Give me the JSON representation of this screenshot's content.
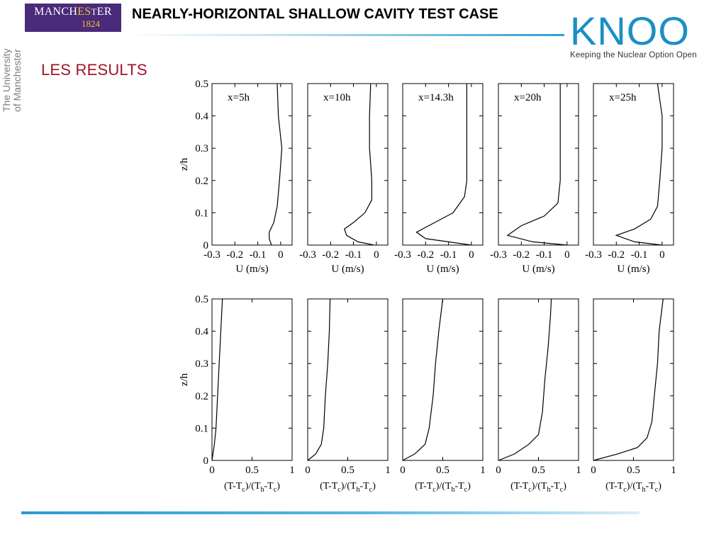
{
  "header": {
    "title": "NEARLY-HORIZONTAL SHALLOW CAVITY TEST CASE",
    "manchester_logo": {
      "line1_a": "MANCH",
      "line1_b": "ES",
      "line1_c": "T",
      "line1_d": "ER",
      "line2": "1824"
    },
    "university_vertical_line1": "The University",
    "university_vertical_line2": "of Manchester",
    "knoo_logo": "KNOO",
    "knoo_tagline": "Keeping the Nuclear Option Open"
  },
  "section_title": "LES RESULTS",
  "colors": {
    "title_rule_accent": "#2e9fd5",
    "section_title": "#a0142a",
    "knoo_blue": "#1a8fc6",
    "manchester_purple": "#4a2a7a"
  },
  "chart_data": [
    {
      "type": "line",
      "row": "velocity",
      "panels": [
        {
          "label": "x=5h",
          "points": [
            [
              -0.04,
              0.0
            ],
            [
              -0.05,
              0.02
            ],
            [
              -0.05,
              0.04
            ],
            [
              -0.03,
              0.07
            ],
            [
              -0.015,
              0.12
            ],
            [
              -0.005,
              0.2
            ],
            [
              0.005,
              0.3
            ],
            [
              -0.01,
              0.4
            ],
            [
              -0.015,
              0.5
            ]
          ]
        },
        {
          "label": "x=10h",
          "points": [
            [
              -0.01,
              0.0
            ],
            [
              -0.08,
              0.01
            ],
            [
              -0.13,
              0.03
            ],
            [
              -0.14,
              0.05
            ],
            [
              -0.1,
              0.07
            ],
            [
              -0.05,
              0.1
            ],
            [
              -0.02,
              0.14
            ],
            [
              -0.02,
              0.2
            ],
            [
              -0.03,
              0.3
            ],
            [
              -0.03,
              0.4
            ],
            [
              -0.025,
              0.5
            ]
          ]
        },
        {
          "label": "x=14.3h",
          "points": [
            [
              0.0,
              0.0
            ],
            [
              -0.1,
              0.01
            ],
            [
              -0.2,
              0.02
            ],
            [
              -0.24,
              0.04
            ],
            [
              -0.16,
              0.07
            ],
            [
              -0.08,
              0.1
            ],
            [
              -0.03,
              0.15
            ],
            [
              -0.02,
              0.2
            ],
            [
              -0.02,
              0.3
            ],
            [
              -0.02,
              0.4
            ],
            [
              -0.02,
              0.5
            ]
          ]
        },
        {
          "label": "x=20h",
          "points": [
            [
              0.0,
              0.0
            ],
            [
              -0.15,
              0.01
            ],
            [
              -0.26,
              0.03
            ],
            [
              -0.2,
              0.06
            ],
            [
              -0.1,
              0.09
            ],
            [
              -0.04,
              0.13
            ],
            [
              -0.03,
              0.2
            ],
            [
              -0.03,
              0.3
            ],
            [
              -0.03,
              0.4
            ],
            [
              -0.03,
              0.5
            ]
          ]
        },
        {
          "label": "x=25h",
          "points": [
            [
              0.0,
              0.0
            ],
            [
              -0.12,
              0.01
            ],
            [
              -0.2,
              0.03
            ],
            [
              -0.12,
              0.05
            ],
            [
              -0.05,
              0.08
            ],
            [
              -0.02,
              0.12
            ],
            [
              -0.01,
              0.2
            ],
            [
              0.0,
              0.3
            ],
            [
              0.0,
              0.4
            ],
            [
              -0.01,
              0.45
            ],
            [
              -0.02,
              0.5
            ]
          ]
        }
      ],
      "xlim": [
        -0.3,
        0.05
      ],
      "ylim": [
        0,
        0.5
      ],
      "xticks": [
        -0.3,
        -0.2,
        -0.1,
        0
      ],
      "xtick_labels": [
        "-0.3",
        "-0.2",
        "-0.1",
        "0"
      ],
      "xlabel": "U (m/s)",
      "ylabel": "z/h",
      "yticks": [
        0,
        0.1,
        0.2,
        0.3,
        0.4,
        0.5
      ],
      "ytick_labels": [
        "0",
        "0.1",
        "0.2",
        "0.3",
        "0.4",
        "0.5"
      ]
    },
    {
      "type": "line",
      "row": "temperature",
      "panels": [
        {
          "points": [
            [
              0.0,
              0.0
            ],
            [
              0.03,
              0.05
            ],
            [
              0.05,
              0.1
            ],
            [
              0.07,
              0.2
            ],
            [
              0.1,
              0.35
            ],
            [
              0.13,
              0.5
            ]
          ]
        },
        {
          "points": [
            [
              0.0,
              0.0
            ],
            [
              0.1,
              0.02
            ],
            [
              0.17,
              0.05
            ],
            [
              0.2,
              0.1
            ],
            [
              0.22,
              0.2
            ],
            [
              0.25,
              0.3
            ],
            [
              0.27,
              0.4
            ],
            [
              0.28,
              0.5
            ]
          ]
        },
        {
          "points": [
            [
              0.0,
              0.0
            ],
            [
              0.15,
              0.02
            ],
            [
              0.28,
              0.05
            ],
            [
              0.33,
              0.1
            ],
            [
              0.38,
              0.2
            ],
            [
              0.41,
              0.3
            ],
            [
              0.45,
              0.4
            ],
            [
              0.5,
              0.5
            ]
          ]
        },
        {
          "points": [
            [
              0.0,
              0.0
            ],
            [
              0.2,
              0.02
            ],
            [
              0.38,
              0.05
            ],
            [
              0.5,
              0.08
            ],
            [
              0.55,
              0.15
            ],
            [
              0.58,
              0.25
            ],
            [
              0.62,
              0.35
            ],
            [
              0.65,
              0.45
            ],
            [
              0.66,
              0.5
            ]
          ]
        },
        {
          "points": [
            [
              0.0,
              0.0
            ],
            [
              0.3,
              0.02
            ],
            [
              0.55,
              0.04
            ],
            [
              0.67,
              0.07
            ],
            [
              0.73,
              0.12
            ],
            [
              0.76,
              0.2
            ],
            [
              0.8,
              0.3
            ],
            [
              0.82,
              0.4
            ],
            [
              0.87,
              0.5
            ]
          ]
        }
      ],
      "xlim": [
        0,
        1
      ],
      "ylim": [
        0,
        0.5
      ],
      "xticks": [
        0,
        0.5,
        1
      ],
      "xtick_labels": [
        "0",
        "0.5",
        "1"
      ],
      "xlabel_parts": [
        "(T-T",
        "c",
        ")/(T",
        "h",
        "-T",
        "c",
        ")"
      ],
      "ylabel": "z/h",
      "yticks": [
        0,
        0.1,
        0.2,
        0.3,
        0.4,
        0.5
      ],
      "ytick_labels": [
        "0",
        "0.1",
        "0.2",
        "0.3",
        "0.4",
        "0.5"
      ]
    }
  ]
}
